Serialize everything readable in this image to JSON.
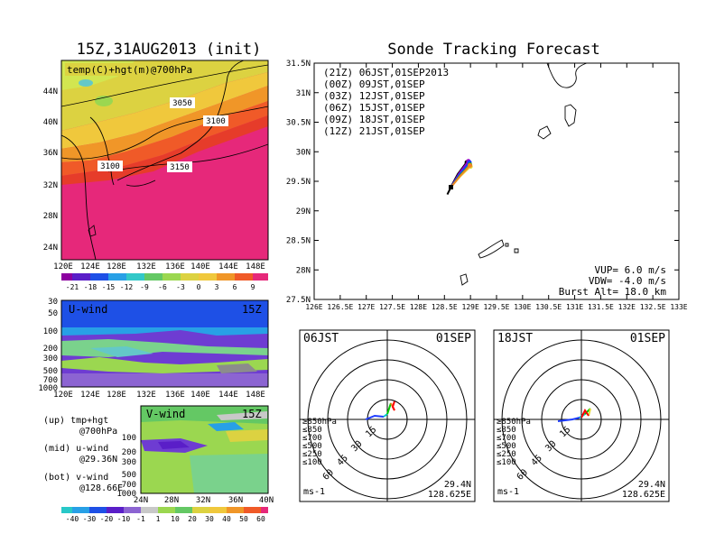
{
  "left_title": "15Z,31AUG2013 (init)",
  "main_title": "Sonde Tracking Forecast",
  "map_panel": {
    "label": "temp(C)+hgt(m)@700hPa",
    "contour_labels": [
      "3050",
      "3100",
      "3100",
      "3150"
    ],
    "lat_ticks": [
      "44N",
      "40N",
      "36N",
      "32N",
      "28N",
      "24N"
    ],
    "lon_ticks": [
      "120E",
      "124E",
      "128E",
      "132E",
      "136E",
      "140E",
      "144E",
      "148E"
    ],
    "colorbar_labels": [
      "-21",
      "-18",
      "-15",
      "-12",
      "-9",
      "-6",
      "-3",
      "0",
      "3",
      "6",
      "9"
    ]
  },
  "uwind_panel": {
    "label": "U-wind",
    "time": "15Z",
    "p_ticks": [
      "30",
      "50",
      "100",
      "200",
      "300",
      "500",
      "700",
      "1000"
    ],
    "lon_ticks": [
      "120E",
      "124E",
      "128E",
      "132E",
      "136E",
      "140E",
      "144E",
      "148E"
    ]
  },
  "vwind_panel": {
    "label": "V-wind",
    "time": "15Z",
    "p_ticks": [
      "100",
      "200",
      "300",
      "500",
      "700",
      "1000"
    ],
    "lat_ticks": [
      "24N",
      "28N",
      "32N",
      "36N",
      "40N"
    ],
    "colorbar_labels": [
      "-40",
      "-30",
      "-20",
      "-10",
      "-1",
      "1",
      "10",
      "20",
      "30",
      "40",
      "50",
      "60"
    ]
  },
  "legend_notes": [
    {
      "head": "(up) tmp+hgt",
      "sub": "@700hPa"
    },
    {
      "head": "(mid) u-wind",
      "sub": "@29.36N"
    },
    {
      "head": "(bot) v-wind",
      "sub": "@128.66E"
    }
  ],
  "track_panel": {
    "lat_ticks": [
      "31.5N",
      "31N",
      "30.5N",
      "30N",
      "29.5N",
      "29N",
      "28.5N",
      "28N",
      "27.5N"
    ],
    "lon_ticks": [
      "126E",
      "126.5E",
      "127E",
      "127.5E",
      "128E",
      "128.5E",
      "129E",
      "129.5E",
      "130E",
      "130.5E",
      "131E",
      "131.5E",
      "132E",
      "132.5E",
      "133E"
    ],
    "legend": [
      {
        "text": "(21Z) 06JST,01SEP2013",
        "color": "#000000"
      },
      {
        "text": "(00Z) 09JST,01SEP",
        "color": "#a000c8"
      },
      {
        "text": "(03Z) 12JST,01SEP",
        "color": "#1e3cff"
      },
      {
        "text": "(06Z) 15JST,01SEP",
        "color": "#00c800"
      },
      {
        "text": "(09Z) 18JST,01SEP",
        "color": "#e6dc32"
      },
      {
        "text": "(12Z) 21JST,01SEP",
        "color": "#f08228"
      }
    ],
    "params": [
      "VUP= 6.0 m/s",
      "VDW= -4.0 m/s",
      "Burst Alt= 18.0 km"
    ]
  },
  "polar_panels": [
    {
      "time": "06JST",
      "date": "01SEP",
      "lat": "29.4N",
      "lon": "128.625E",
      "unit": "ms-1"
    },
    {
      "time": "18JST",
      "date": "01SEP",
      "lat": "29.4N",
      "lon": "128.625E",
      "unit": "ms-1"
    }
  ],
  "polar_ring_labels": [
    "15",
    "30",
    "45",
    "60"
  ],
  "polar_levels": [
    {
      "text": "≥850hPa",
      "color": "#ff0000"
    },
    {
      "text": "≤850",
      "color": "#f08228"
    },
    {
      "text": "≤700",
      "color": "#e6dc32"
    },
    {
      "text": "≤500",
      "color": "#00c800"
    },
    {
      "text": "≤250",
      "color": "#00c8c8"
    },
    {
      "text": "≤100",
      "color": "#1e3cff"
    }
  ],
  "chart_data": {
    "type": "line",
    "title": "Sonde Tracking Forecast",
    "x_range": [
      126,
      133
    ],
    "y_range": [
      27.5,
      31.5
    ],
    "launch_point": {
      "lon": 128.625,
      "lat": 29.4
    },
    "series": [
      {
        "name": "(21Z) 06JST,01SEP2013",
        "color": "#000000",
        "points": [
          [
            128.625,
            29.4
          ],
          [
            128.76,
            29.62
          ],
          [
            128.93,
            29.82
          ]
        ]
      },
      {
        "name": "(00Z) 09JST,01SEP",
        "color": "#a000c8",
        "points": [
          [
            128.625,
            29.4
          ],
          [
            128.78,
            29.63
          ],
          [
            128.96,
            29.84
          ]
        ]
      },
      {
        "name": "(03Z) 12JST,01SEP",
        "color": "#1e3cff",
        "points": [
          [
            128.625,
            29.4
          ],
          [
            128.79,
            29.62
          ],
          [
            128.98,
            29.82
          ]
        ]
      },
      {
        "name": "(06Z) 15JST,01SEP",
        "color": "#00c800",
        "points": [
          [
            128.625,
            29.4
          ],
          [
            128.8,
            29.6
          ],
          [
            128.99,
            29.78
          ]
        ]
      },
      {
        "name": "(09Z) 18JST,01SEP",
        "color": "#e6dc32",
        "points": [
          [
            128.625,
            29.4
          ],
          [
            128.8,
            29.58
          ],
          [
            129.0,
            29.75
          ]
        ]
      },
      {
        "name": "(12Z) 21JST,01SEP",
        "color": "#f08228",
        "points": [
          [
            128.625,
            29.4
          ],
          [
            128.8,
            29.59
          ],
          [
            128.99,
            29.77
          ]
        ]
      }
    ],
    "grid": false
  }
}
